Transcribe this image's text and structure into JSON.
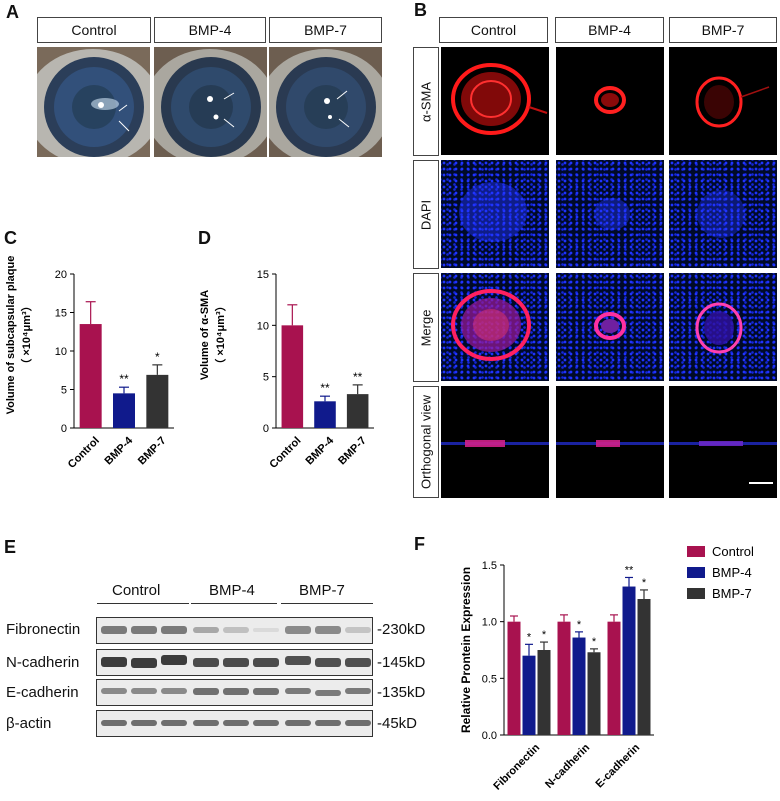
{
  "panels": {
    "a": "A",
    "b": "B",
    "c": "C",
    "d": "D",
    "e": "E",
    "f": "F"
  },
  "groups": [
    "Control",
    "BMP-4",
    "BMP-7"
  ],
  "panel_b": {
    "rows": [
      "α-SMA",
      "DAPI",
      "Merge",
      "Orthogonal view"
    ]
  },
  "panel_e": {
    "rows": [
      {
        "protein": "Fibronectin",
        "size": "-230kD"
      },
      {
        "protein": "N-cadherin",
        "size": "-145kD"
      },
      {
        "protein": "E-cadherin",
        "size": "-135kD"
      },
      {
        "protein": "β-actin",
        "size": "-45kD"
      }
    ]
  },
  "chart_data": [
    {
      "type": "bar",
      "panel": "C",
      "categories": [
        "Control",
        "BMP-4",
        "BMP-7"
      ],
      "values": [
        13.5,
        4.5,
        6.9
      ],
      "errors": [
        2.9,
        0.8,
        1.3
      ],
      "significance": [
        "",
        "**",
        "*"
      ],
      "colors": [
        "#a8124f",
        "#101a8c",
        "#333333"
      ],
      "ylabel_line1": "Volume of subcapsular plaque",
      "ylabel_line2": "（ ×10⁴μm³）",
      "yticks": [
        "0",
        "5",
        "10",
        "15",
        "20"
      ],
      "ylim": [
        0,
        20
      ]
    },
    {
      "type": "bar",
      "panel": "D",
      "categories": [
        "Control",
        "BMP-4",
        "BMP-7"
      ],
      "values": [
        10.0,
        2.6,
        3.3
      ],
      "errors": [
        2.0,
        0.5,
        0.9
      ],
      "significance": [
        "",
        "**",
        "**"
      ],
      "colors": [
        "#a8124f",
        "#101a8c",
        "#333333"
      ],
      "ylabel_line1": "Volume of α-SMA",
      "ylabel_line2": "（ ×10⁴μm³）",
      "yticks": [
        "0",
        "5",
        "10",
        "15"
      ],
      "ylim": [
        0,
        15
      ]
    },
    {
      "type": "bar",
      "panel": "F",
      "categories": [
        "Fibronectin",
        "N-cadherin",
        "E-cadherin"
      ],
      "series": [
        {
          "name": "Control",
          "color": "#a8124f",
          "values": [
            1.0,
            1.0,
            1.0
          ],
          "errors": [
            0.05,
            0.06,
            0.06
          ],
          "significance": [
            "",
            "",
            ""
          ]
        },
        {
          "name": "BMP-4",
          "color": "#101a8c",
          "values": [
            0.7,
            0.86,
            1.31
          ],
          "errors": [
            0.1,
            0.05,
            0.08
          ],
          "significance": [
            "*",
            "*",
            "**"
          ]
        },
        {
          "name": "BMP-7",
          "color": "#333333",
          "values": [
            0.75,
            0.73,
            1.2
          ],
          "errors": [
            0.07,
            0.03,
            0.08
          ],
          "significance": [
            "*",
            "*",
            "*"
          ]
        }
      ],
      "ylabel": "Relative Prontein Expression",
      "yticks": [
        "0.0",
        "0.5",
        "1.0",
        "1.5"
      ],
      "ylim": [
        0,
        1.5
      ],
      "legend_position": "top-right"
    }
  ]
}
